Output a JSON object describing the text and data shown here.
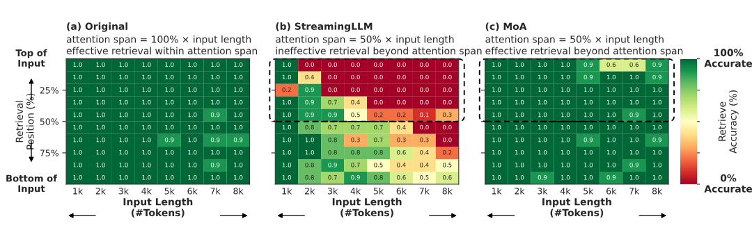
{
  "chart_data": [
    {
      "type": "heatmap",
      "title": "(a) Original",
      "subtitle": "attention span = 100% × input length\neffective retrieval within attention span",
      "xlabel": "Input Length\n(#Tokens)",
      "ylabel": "Retrieval\nPosition (%)",
      "annotations": [
        "Top of\nInput",
        "Bottom of\nInput"
      ],
      "categories": [
        "1k",
        "2k",
        "3k",
        "4k",
        "5k",
        "6k",
        "7k",
        "8k"
      ],
      "ylim": [
        100,
        0
      ],
      "yticks": [
        {
          "value": 25,
          "label": "25%"
        },
        {
          "value": 50,
          "label": "50%"
        },
        {
          "value": 75,
          "label": "75%"
        }
      ],
      "cell_labels": [
        [
          "1.0",
          "1.0",
          "1.0",
          "1.0",
          "1.0",
          "1.0",
          "1.0",
          "1.0"
        ],
        [
          "1.0",
          "1.0",
          "1.0",
          "1.0",
          "1.0",
          "1.0",
          "1.0",
          "1.0"
        ],
        [
          "1.0",
          "1.0",
          "1.0",
          "1.0",
          "1.0",
          "1.0",
          "1.0",
          "1.0"
        ],
        [
          "1.0",
          "1.0",
          "1.0",
          "1.0",
          "1.0",
          "1.0",
          "1.0",
          "1.0"
        ],
        [
          "1.0",
          "1.0",
          "1.0",
          "1.0",
          "1.0",
          "1.0",
          "0.9",
          "1.0"
        ],
        [
          "1.0",
          "1.0",
          "1.0",
          "1.0",
          "1.0",
          "1.0",
          "1.0",
          "1.0"
        ],
        [
          "1.0",
          "1.0",
          "1.0",
          "1.0",
          "0.9",
          "1.0",
          "0.9",
          "0.9"
        ],
        [
          "1.0",
          "1.0",
          "1.0",
          "1.0",
          "1.0",
          "1.0",
          "1.0",
          "1.0"
        ],
        [
          "1.0",
          "1.0",
          "1.0",
          "1.0",
          "1.0",
          "1.0",
          "0.9",
          "1.0"
        ],
        [
          "1.0",
          "1.0",
          "1.0",
          "1.0",
          "1.0",
          "1.0",
          "1.0",
          "1.0"
        ]
      ],
      "cells": [
        [
          1.0,
          1.0,
          1.0,
          1.0,
          1.0,
          1.0,
          1.0,
          1.0
        ],
        [
          1.0,
          1.0,
          1.0,
          1.0,
          1.0,
          1.0,
          1.0,
          1.0
        ],
        [
          1.0,
          1.0,
          1.0,
          1.0,
          1.0,
          1.0,
          1.0,
          1.0
        ],
        [
          1.0,
          1.0,
          1.0,
          1.0,
          1.0,
          1.0,
          1.0,
          1.0
        ],
        [
          1.0,
          1.0,
          1.0,
          1.0,
          1.0,
          1.0,
          0.9,
          1.0
        ],
        [
          1.0,
          1.0,
          1.0,
          1.0,
          1.0,
          1.0,
          1.0,
          1.0
        ],
        [
          1.0,
          1.0,
          1.0,
          1.0,
          0.9,
          1.0,
          0.9,
          0.9
        ],
        [
          1.0,
          1.0,
          1.0,
          1.0,
          1.0,
          1.0,
          1.0,
          1.0
        ],
        [
          1.0,
          1.0,
          1.0,
          1.0,
          1.0,
          1.0,
          0.9,
          1.0
        ],
        [
          1.0,
          1.0,
          1.0,
          1.0,
          1.0,
          1.0,
          1.0,
          1.0
        ]
      ]
    },
    {
      "type": "heatmap",
      "title": "(b) StreamingLLM",
      "subtitle": "attention span = 50% × input length\nineffective retrieval beyond attention span",
      "xlabel": "Input Length\n(#Tokens)",
      "categories": [
        "1k",
        "2k",
        "3k",
        "4k",
        "5k",
        "6k",
        "7k",
        "8k"
      ],
      "ylim": [
        100,
        0
      ],
      "yticks": [
        {
          "value": 25,
          "label": null
        },
        {
          "value": 50,
          "label": null
        },
        {
          "value": 75,
          "label": null
        }
      ],
      "tick_labels": "x",
      "ref_lines": [
        {
          "axis": "y",
          "value": 50,
          "color": "#000000",
          "line_style": "dashed"
        }
      ],
      "cell_labels": [
        [
          "1.0",
          "0.0",
          "0.0",
          "0.0",
          "0.0",
          "0.0",
          "0.0",
          "0.0"
        ],
        [
          "1.0",
          "0.4",
          "0.0",
          "0.0",
          "0.0",
          "0.0",
          "0.0",
          "0.0"
        ],
        [
          "0.2",
          "0.9",
          "0.0",
          "0.0",
          "0.0",
          "0.0",
          "0.0",
          "0.0"
        ],
        [
          "1.0",
          "0.9",
          "0.7",
          "0.4",
          "0.0",
          "0.0",
          "0.0",
          "0.0"
        ],
        [
          "1.0",
          "0.9",
          "0.9",
          "0.5",
          "0.2",
          "0.2",
          "0.1",
          "0.3"
        ],
        [
          "1.0",
          "0.8",
          "0.7",
          "0.7",
          "0.7",
          "0.4",
          "0.0",
          "0.0"
        ],
        [
          "1.0",
          "1.0",
          "0.8",
          "0.3",
          "0.7",
          "0.3",
          "0.3",
          "0.0"
        ],
        [
          "1.0",
          "1.0",
          "0.8",
          "0.8",
          "0.8",
          "0.6",
          "0.4",
          "0.2"
        ],
        [
          "1.0",
          "0.8",
          "0.9",
          "0.7",
          "0.5",
          "0.4",
          "0.4",
          "0.5"
        ],
        [
          "1.0",
          "0.8",
          "0.7",
          "0.9",
          "0.8",
          "0.6",
          "0.5",
          "0.6"
        ]
      ],
      "cells": [
        [
          1.0,
          0.0,
          0.0,
          0.0,
          0.0,
          0.0,
          0.0,
          0.0
        ],
        [
          1.0,
          0.4,
          0.0,
          0.0,
          0.0,
          0.0,
          0.0,
          0.0
        ],
        [
          0.2,
          0.9,
          0.0,
          0.0,
          0.0,
          0.0,
          0.0,
          0.0
        ],
        [
          1.0,
          0.9,
          0.7,
          0.4,
          0.0,
          0.0,
          0.0,
          0.0
        ],
        [
          1.0,
          0.9,
          0.9,
          0.5,
          0.2,
          0.2,
          0.1,
          0.3
        ],
        [
          1.0,
          0.8,
          0.7,
          0.7,
          0.7,
          0.4,
          0.0,
          0.0
        ],
        [
          1.0,
          1.0,
          0.8,
          0.3,
          0.7,
          0.3,
          0.3,
          0.0
        ],
        [
          1.0,
          1.0,
          0.8,
          0.8,
          0.8,
          0.6,
          0.4,
          0.2
        ],
        [
          1.0,
          0.8,
          0.9,
          0.7,
          0.5,
          0.4,
          0.4,
          0.5
        ],
        [
          1.0,
          0.8,
          0.7,
          0.9,
          0.8,
          0.6,
          0.5,
          0.6
        ]
      ]
    },
    {
      "type": "heatmap",
      "title": "(c) MoA",
      "subtitle": "attention span = 50% × input length\neffective retrieval beyond attention span",
      "xlabel": "Input Length\n(#Tokens)",
      "categories": [
        "1k",
        "2k",
        "3k",
        "4k",
        "5k",
        "6k",
        "7k",
        "8k"
      ],
      "ylim": [
        100,
        0
      ],
      "yticks": [
        {
          "value": 25,
          "label": null
        },
        {
          "value": 50,
          "label": null
        },
        {
          "value": 75,
          "label": null
        }
      ],
      "tick_labels": "x",
      "ref_lines": [
        {
          "axis": "y",
          "value": 50,
          "color": "#000000",
          "line_style": "dashed"
        }
      ],
      "cell_labels": [
        [
          "1.0",
          "1.0",
          "1.0",
          "1.0",
          "0.9",
          "0.6",
          "0.6",
          "0.9"
        ],
        [
          "1.0",
          "1.0",
          "1.0",
          "1.0",
          "0.9",
          "1.0",
          "1.0",
          "0.9"
        ],
        [
          "1.0",
          "1.0",
          "1.0",
          "1.0",
          "1.0",
          "1.0",
          "1.0",
          "1.0"
        ],
        [
          "1.0",
          "1.0",
          "1.0",
          "1.0",
          "1.0",
          "1.0",
          "1.0",
          "1.0"
        ],
        [
          "1.0",
          "1.0",
          "1.0",
          "1.0",
          "1.0",
          "1.0",
          "0.9",
          "1.0"
        ],
        [
          "1.0",
          "1.0",
          "1.0",
          "1.0",
          "1.0",
          "1.0",
          "1.0",
          "1.0"
        ],
        [
          "1.0",
          "1.0",
          "1.0",
          "1.0",
          "0.9",
          "1.0",
          "1.0",
          "0.9"
        ],
        [
          "1.0",
          "1.0",
          "1.0",
          "1.0",
          "1.0",
          "1.0",
          "1.0",
          "1.0"
        ],
        [
          "1.0",
          "1.0",
          "1.0",
          "1.0",
          "1.0",
          "1.0",
          "0.9",
          "1.0"
        ],
        [
          "1.0",
          "1.0",
          "0.9",
          "1.0",
          "1.0",
          "0.9",
          "1.0",
          "1.0"
        ]
      ],
      "clabel": "Retrieve\nAccuracy (%)",
      "clim": [
        0,
        1
      ],
      "cticks": [
        {
          "value": 0,
          "label": "0%\nAccurate"
        },
        {
          "value": 0.25,
          "label": null
        },
        {
          "value": 0.5,
          "label": null
        },
        {
          "value": 0.75,
          "label": null
        },
        {
          "value": 1,
          "label": "100%\nAccurate"
        }
      ],
      "cells": [
        [
          1.0,
          1.0,
          1.0,
          1.0,
          0.9,
          0.6,
          0.6,
          0.9
        ],
        [
          1.0,
          1.0,
          1.0,
          1.0,
          0.9,
          1.0,
          1.0,
          0.9
        ],
        [
          1.0,
          1.0,
          1.0,
          1.0,
          1.0,
          1.0,
          1.0,
          1.0
        ],
        [
          1.0,
          1.0,
          1.0,
          1.0,
          1.0,
          1.0,
          1.0,
          1.0
        ],
        [
          1.0,
          1.0,
          1.0,
          1.0,
          1.0,
          1.0,
          0.9,
          1.0
        ],
        [
          1.0,
          1.0,
          1.0,
          1.0,
          1.0,
          1.0,
          1.0,
          1.0
        ],
        [
          1.0,
          1.0,
          1.0,
          1.0,
          0.9,
          1.0,
          1.0,
          0.9
        ],
        [
          1.0,
          1.0,
          1.0,
          1.0,
          1.0,
          1.0,
          1.0,
          1.0
        ],
        [
          1.0,
          1.0,
          1.0,
          1.0,
          1.0,
          1.0,
          0.9,
          1.0
        ],
        [
          1.0,
          1.0,
          0.9,
          1.0,
          1.0,
          0.9,
          1.0,
          1.0
        ]
      ]
    }
  ]
}
